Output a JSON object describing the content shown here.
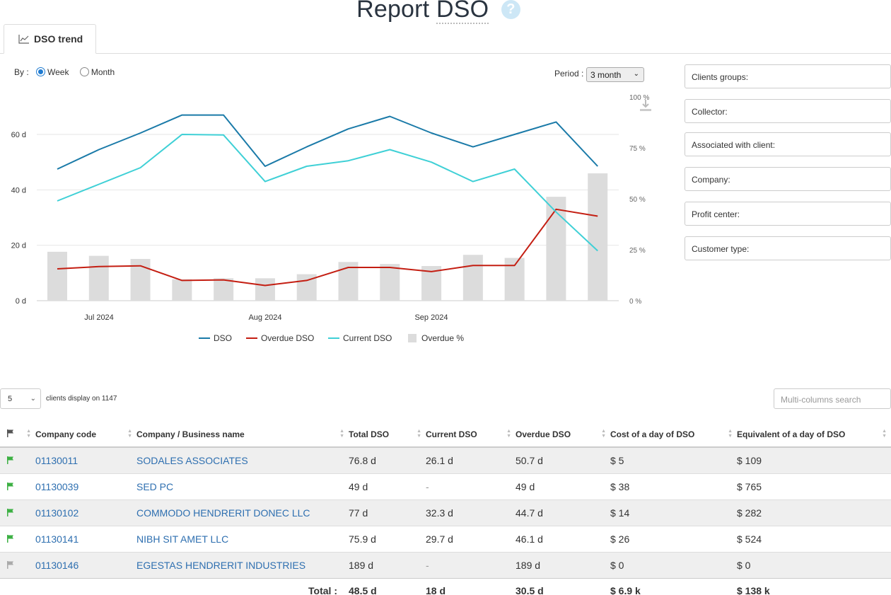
{
  "page": {
    "title": "Report",
    "title_sub": "DSO",
    "help": "?"
  },
  "tab": {
    "label": "DSO trend"
  },
  "by": {
    "label": "By :",
    "options": [
      "Week",
      "Month"
    ],
    "selected": "Week"
  },
  "period": {
    "label": "Period :",
    "value": "3 month"
  },
  "filters": [
    "Clients groups:",
    "Collector:",
    "Associated with client:",
    "Company:",
    "Profit center:",
    "Customer type:"
  ],
  "chart_data": {
    "type": "line",
    "title": "DSO trend",
    "x_ticks": [
      "Jul 2024",
      "Aug 2024",
      "Sep 2024"
    ],
    "y_left": {
      "ticks": [
        "0 d",
        "20 d",
        "40 d",
        "60 d"
      ],
      "range": [
        0,
        72
      ],
      "unit": "d"
    },
    "y_right": {
      "ticks": [
        "0 %",
        "25 %",
        "50 %",
        "75 %",
        "100 %"
      ],
      "range": [
        0,
        100
      ],
      "unit": "%"
    },
    "n_points": 14,
    "series": [
      {
        "name": "DSO",
        "color": "#1a7aa8",
        "axis": "left",
        "values": [
          47.5,
          54.5,
          60.5,
          67.0,
          67.0,
          48.5,
          55.5,
          62.0,
          66.5,
          60.5,
          55.5,
          60.0,
          64.5,
          48.5
        ]
      },
      {
        "name": "Overdue DSO",
        "color": "#c41e12",
        "axis": "left",
        "values": [
          11.5,
          12.3,
          12.6,
          7.3,
          7.5,
          5.5,
          7.3,
          12.0,
          12.0,
          10.5,
          12.7,
          12.7,
          33.0,
          30.5
        ]
      },
      {
        "name": "Current DSO",
        "color": "#3fd0d6",
        "axis": "left",
        "values": [
          36.0,
          42.0,
          48.0,
          60.0,
          59.8,
          43.0,
          48.5,
          50.5,
          54.5,
          50.0,
          43.0,
          47.5,
          32.0,
          18.0
        ]
      },
      {
        "name": "Overdue %",
        "color": "#dcdcdc",
        "axis": "right",
        "kind": "bar",
        "values": [
          24,
          22,
          20.5,
          10.5,
          11,
          11,
          13,
          19,
          18,
          17,
          22.5,
          21,
          51,
          62.5
        ]
      }
    ],
    "legend": [
      "DSO",
      "Overdue DSO",
      "Current DSO",
      "Overdue %"
    ]
  },
  "table_controls": {
    "page_length": "5",
    "info": "clients display on 1147",
    "search_placeholder": "Multi-columns search"
  },
  "table": {
    "columns": [
      "",
      "Company code",
      "Company / Business name",
      "Total DSO",
      "Current DSO",
      "Overdue DSO",
      "Cost of a day of DSO",
      "Equivalent of a day of DSO"
    ],
    "rows": [
      {
        "flag": "green",
        "code": "01130011",
        "name": "SODALES ASSOCIATES",
        "total": "76.8 d",
        "current": "26.1 d",
        "overdue": "50.7 d",
        "cost": "$ 5",
        "equiv": "$ 109"
      },
      {
        "flag": "green",
        "code": "01130039",
        "name": "SED PC",
        "total": "49 d",
        "current": "-",
        "overdue": "49 d",
        "cost": "$ 38",
        "equiv": "$ 765"
      },
      {
        "flag": "green",
        "code": "01130102",
        "name": "COMMODO HENDRERIT DONEC LLC",
        "total": "77 d",
        "current": "32.3 d",
        "overdue": "44.7 d",
        "cost": "$ 14",
        "equiv": "$ 282"
      },
      {
        "flag": "green",
        "code": "01130141",
        "name": "NIBH SIT AMET LLC",
        "total": "75.9 d",
        "current": "29.7 d",
        "overdue": "46.1 d",
        "cost": "$ 26",
        "equiv": "$ 524"
      },
      {
        "flag": "gray",
        "code": "01130146",
        "name": "EGESTAS HENDRERIT INDUSTRIES",
        "total": "189 d",
        "current": "-",
        "overdue": "189 d",
        "cost": "$ 0",
        "equiv": "$ 0"
      }
    ],
    "total": {
      "label": "Total :",
      "total": "48.5 d",
      "current": "18 d",
      "overdue": "30.5 d",
      "cost": "$ 6.9 k",
      "equiv": "$ 138 k"
    }
  },
  "colors": {
    "flag_green": "#3cb043",
    "flag_gray": "#aaaaaa",
    "link": "#2e6fb0",
    "radio": "#1f7bd1"
  }
}
